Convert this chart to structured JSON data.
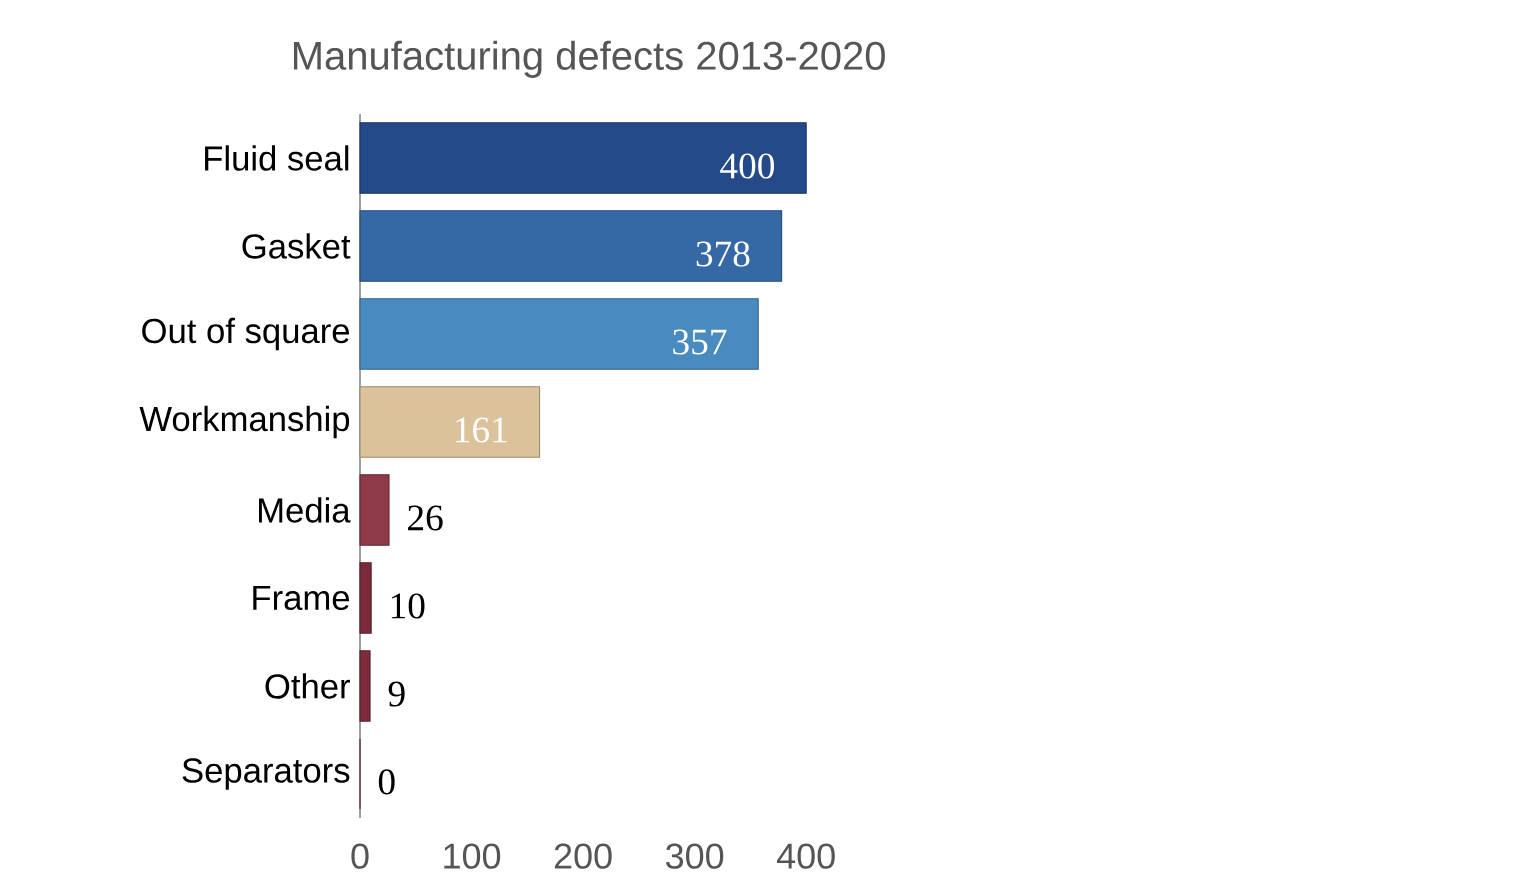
{
  "chart_data": {
    "type": "bar",
    "orientation": "horizontal",
    "title": "Manufacturing defects 2013-2020",
    "categories": [
      "Fluid seal",
      "Gasket",
      "Out of square",
      "Workmanship",
      "Media",
      "Frame",
      "Other",
      "Separators"
    ],
    "values": [
      400,
      378,
      357,
      161,
      26,
      10,
      9,
      0
    ],
    "colors": [
      "#244a8a",
      "#3569a5",
      "#4a8bbf",
      "#dcc29a",
      "#8e3a48",
      "#7a2a3a",
      "#7d2c3c",
      "#7d2c3c"
    ],
    "xlim": [
      0,
      410
    ],
    "xticks": [
      0,
      100,
      200,
      300,
      400
    ],
    "data_labels": true
  }
}
